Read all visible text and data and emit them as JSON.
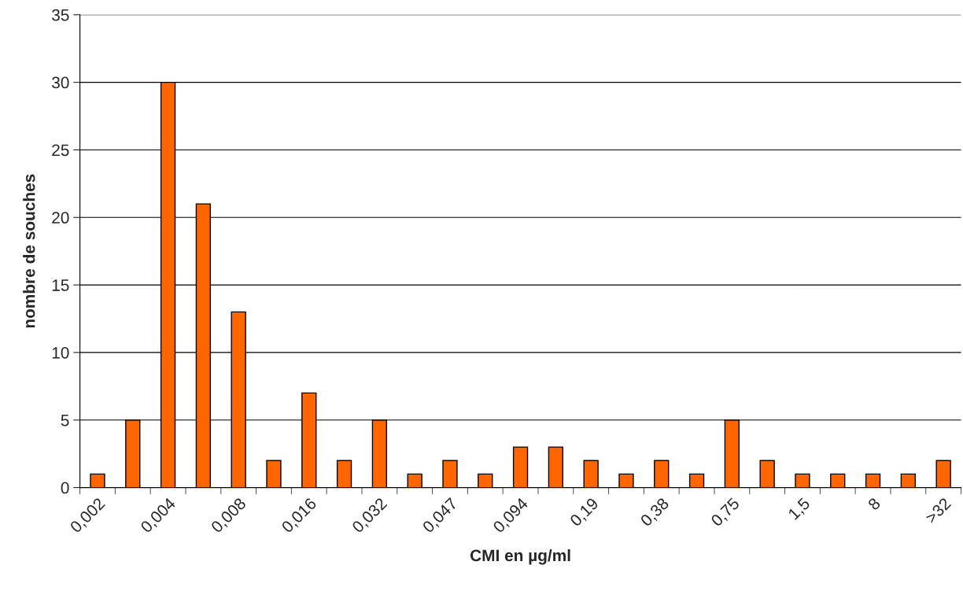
{
  "chart_data": {
    "type": "bar",
    "xlabel": "CMI en µg/ml",
    "ylabel": "nombre de souches",
    "categories": [
      "0,002",
      null,
      "0,004",
      null,
      "0,008",
      null,
      "0,016",
      null,
      "0,032",
      null,
      "0,047",
      null,
      "0,094",
      null,
      "0,19",
      null,
      "0,38",
      null,
      "0,75",
      null,
      "1,5",
      null,
      "8",
      null,
      ">32"
    ],
    "values": [
      1,
      5,
      30,
      21,
      13,
      2,
      7,
      2,
      5,
      1,
      2,
      1,
      3,
      3,
      2,
      1,
      2,
      1,
      5,
      2,
      1,
      1,
      1,
      1,
      2
    ],
    "color": "#ff6600",
    "ylim": [
      0,
      35
    ],
    "yticks": [
      0,
      5,
      10,
      15,
      20,
      25,
      30,
      35
    ],
    "grid": "y"
  }
}
